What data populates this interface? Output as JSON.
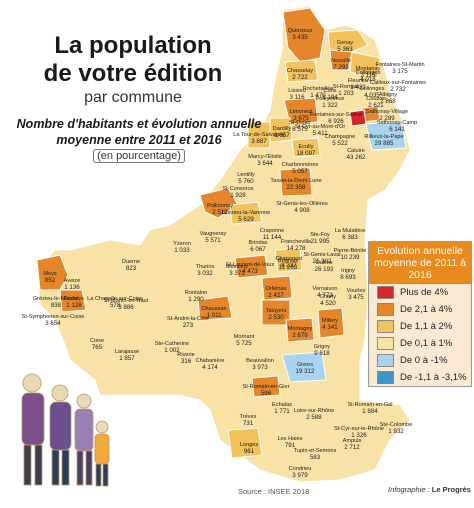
{
  "header": {
    "title_line1": "La population",
    "title_line2": "de votre édition",
    "title_line3": "par commune",
    "subtitle_line1": "Nombre d'habitants et évolution annuelle",
    "subtitle_line2": "moyenne entre 2011 et 2016",
    "subtitle_unit": "(en pourcentage)"
  },
  "legend": {
    "title": "Evolution annuelle moyenne de 2011 à 2016",
    "items": [
      {
        "label": "Plus de 4%",
        "color": "#d7262b"
      },
      {
        "label": "De 2,1 à 4%",
        "color": "#e5862b"
      },
      {
        "label": "De 1,1 à 2%",
        "color": "#f2c25c"
      },
      {
        "label": "De 0,1 à 1%",
        "color": "#f9e2a6"
      },
      {
        "label": "De 0 à -1%",
        "color": "#a9d3ee"
      },
      {
        "label": "De -1,1 à -3,1%",
        "color": "#3f95cd"
      }
    ]
  },
  "footer": {
    "source": "Source : INSEE 2018",
    "credit_prefix": "Infographie : ",
    "credit_name": "Le Progrès"
  },
  "communes": [
    {
      "name": "Quincieux",
      "pop": "3 435",
      "cls": 1
    },
    {
      "name": "Genay",
      "pop": "5 363",
      "cls": 3
    },
    {
      "name": "Neuville",
      "pop": "7 293",
      "cls": 2
    },
    {
      "name": "Montanay",
      "pop": "3 115",
      "cls": 3
    },
    {
      "name": "Chasselay",
      "pop": "2 722",
      "cls": 3
    },
    {
      "name": "Fleurieu",
      "pop": "1 432",
      "cls": 3
    },
    {
      "name": "Lissieu",
      "pop": "3 116",
      "cls": 3
    },
    {
      "name": "Curis",
      "pop": "1 194",
      "cls": 3
    },
    {
      "name": "Poleymieux",
      "pop": "1 322",
      "cls": 3
    },
    {
      "name": "Cailloux-sur-Fontaines",
      "pop": "2 732",
      "cls": 3
    },
    {
      "name": "Limonest",
      "pop": "3 675",
      "cls": 1
    },
    {
      "name": "Sathonay-Village",
      "pop": "2 289",
      "cls": 2
    },
    {
      "name": "Sathonay-Camp",
      "pop": "6 141",
      "cls": 3
    },
    {
      "name": "Rillieux-la-Pape",
      "pop": "29 885",
      "cls": 4
    },
    {
      "name": "Dardilly",
      "pop": "8 657",
      "cls": 3
    },
    {
      "name": "La Tour-de-Salvagny",
      "pop": "3 887",
      "cls": 3
    },
    {
      "name": "Ecully",
      "pop": "18 097",
      "cls": 3
    },
    {
      "name": "Marcy-l'Etoile",
      "pop": "3 644",
      "cls": 3
    },
    {
      "name": "St-Genis-les-Ollières",
      "pop": "4 908",
      "cls": 3
    },
    {
      "name": "Charbonnières",
      "pop": "5 057",
      "cls": 3
    },
    {
      "name": "Pollionnay",
      "pop": "2 512",
      "cls": 1
    },
    {
      "name": "Tassin-la-Demi-Lune",
      "pop": "22 358",
      "cls": 1
    },
    {
      "name": "Grézieu-la-Varenne",
      "pop": "5 629",
      "cls": 2
    },
    {
      "name": "Craponne",
      "pop": "11 144",
      "cls": 3
    },
    {
      "name": "Francheville",
      "pop": "14 278",
      "cls": 3
    },
    {
      "name": "Ste-Foy",
      "pop": "21 995",
      "cls": 3
    },
    {
      "name": "La Mulatière",
      "pop": "6 383",
      "cls": 3
    },
    {
      "name": "Vaugneray",
      "pop": "5 571",
      "cls": 3
    },
    {
      "name": "Brindas",
      "pop": "6 067",
      "cls": 3
    },
    {
      "name": "Chaponost",
      "pop": "8 237",
      "cls": 3
    },
    {
      "name": "Oullins",
      "pop": "26 193",
      "cls": 3
    },
    {
      "name": "Pierre-Bénite",
      "pop": "10 239",
      "cls": 3
    },
    {
      "name": "St-Genis-Laval",
      "pop": "21 302",
      "cls": 3
    },
    {
      "name": "Yzeron",
      "pop": "1 033",
      "cls": 3
    },
    {
      "name": "Thurins",
      "pop": "3 032",
      "cls": 3
    },
    {
      "name": "Messimy",
      "pop": "3 371",
      "cls": 3
    },
    {
      "name": "St-Laurent-de-Vaux",
      "pop": "4 473",
      "cls": 1
    },
    {
      "name": "Brignais",
      "pop": "11 263",
      "cls": 2
    },
    {
      "name": "Irigny",
      "pop": "8 693",
      "cls": 3
    },
    {
      "name": "Vourles",
      "pop": "3 475",
      "cls": 3
    },
    {
      "name": "Vernaison",
      "pop": "4 773",
      "cls": 3
    },
    {
      "name": "Charly",
      "pop": "4 520",
      "cls": 3
    },
    {
      "name": "Duerne",
      "pop": "823",
      "cls": 3
    },
    {
      "name": "Aveize",
      "pop": "1 136",
      "cls": 3
    },
    {
      "name": "Meys",
      "pop": "852",
      "cls": 1
    },
    {
      "name": "Grézieu-le-Marché",
      "pop": "838",
      "cls": 3
    },
    {
      "name": "Pomeys",
      "pop": "1 128",
      "cls": 1
    },
    {
      "name": "La Chapelle-sur-Coise",
      "pop": "578",
      "cls": 3
    },
    {
      "name": "St-Martin-en-Haut",
      "pop": "3 886",
      "cls": 3
    },
    {
      "name": "Rontalon",
      "pop": "1 290",
      "cls": 3
    },
    {
      "name": "St-Symphorien-sur-Coise",
      "pop": "3 654",
      "cls": 3
    },
    {
      "name": "St-André-la-Côte",
      "pop": "273",
      "cls": 3
    },
    {
      "name": "Orliénas",
      "pop": "2 427",
      "cls": 2
    },
    {
      "name": "Taluyers",
      "pop": "2 530",
      "cls": 1
    },
    {
      "name": "Millery",
      "pop": "4 341",
      "cls": 1
    },
    {
      "name": "Montagny",
      "pop": "2 879",
      "cls": 2
    },
    {
      "name": "Chaussan",
      "pop": "1 011",
      "cls": 1
    },
    {
      "name": "Coise",
      "pop": "765",
      "cls": 3
    },
    {
      "name": "Larajasse",
      "pop": "1 857",
      "cls": 3
    },
    {
      "name": "Ste-Catherine",
      "pop": "1 002",
      "cls": 3
    },
    {
      "name": "Mornant",
      "pop": "5 725",
      "cls": 3
    },
    {
      "name": "Riverie",
      "pop": "316",
      "cls": 3
    },
    {
      "name": "Chabanière",
      "pop": "4 174",
      "cls": 3
    },
    {
      "name": "Beauvallon",
      "pop": "3 973",
      "cls": 3
    },
    {
      "name": "Givors",
      "pop": "19 312",
      "cls": 4
    },
    {
      "name": "Grigny",
      "pop": "9 618",
      "cls": 3
    },
    {
      "name": "St-Romain-en-Gier",
      "pop": "596",
      "cls": 1
    },
    {
      "name": "Echalas",
      "pop": "1 771",
      "cls": 3
    },
    {
      "name": "Loire-sur-Rhône",
      "pop": "2 588",
      "cls": 3
    },
    {
      "name": "St-Romain-en-Gal",
      "pop": "1 884",
      "cls": 3
    },
    {
      "name": "Trèves",
      "pop": "731",
      "cls": 3
    },
    {
      "name": "St-Cyr-sur-le-Rhône",
      "pop": "1 326",
      "cls": 3
    },
    {
      "name": "Ste-Colombe",
      "pop": "1 932",
      "cls": 3
    },
    {
      "name": "Les Haies",
      "pop": "791",
      "cls": 3
    },
    {
      "name": "Longes",
      "pop": "961",
      "cls": 2
    },
    {
      "name": "Tupin-et-Semons",
      "pop": "583",
      "cls": 3
    },
    {
      "name": "Ampuis",
      "pop": "2 712",
      "cls": 3
    },
    {
      "name": "Condrieu",
      "pop": "3 979",
      "cls": 3
    },
    {
      "name": "Collonges",
      "pop": "4 035",
      "cls": 3
    },
    {
      "name": "Couzon",
      "pop": "2 621",
      "cls": 3
    },
    {
      "name": "Fontaines-sur-Saône",
      "pop": "6 926",
      "cls": 3
    },
    {
      "name": "St-Cyr-au-Mont-d'Or",
      "pop": "5 411",
      "cls": 3
    },
    {
      "name": "St-Didier",
      "pop": "6 575",
      "cls": 3
    },
    {
      "name": "Champagne",
      "pop": "5 522",
      "cls": 3
    },
    {
      "name": "Caluire",
      "pop": "43 262",
      "cls": 3
    },
    {
      "name": "Albigny",
      "pop": "2 868",
      "cls": 3
    },
    {
      "name": "Fontaines-St-Martin",
      "pop": "3 175",
      "cls": 3
    },
    {
      "name": "Rochetaillée",
      "pop": "1 470",
      "cls": 3
    },
    {
      "name": "St-Romain",
      "pop": "1 203",
      "cls": 3
    },
    {
      "name": "Collonges",
      "pop": "4 018",
      "cls": 3
    },
    {
      "name": "Lentilly",
      "pop": "5 760",
      "cls": 3
    },
    {
      "name": "St-Consorce",
      "pop": "1 928",
      "cls": 3
    }
  ]
}
